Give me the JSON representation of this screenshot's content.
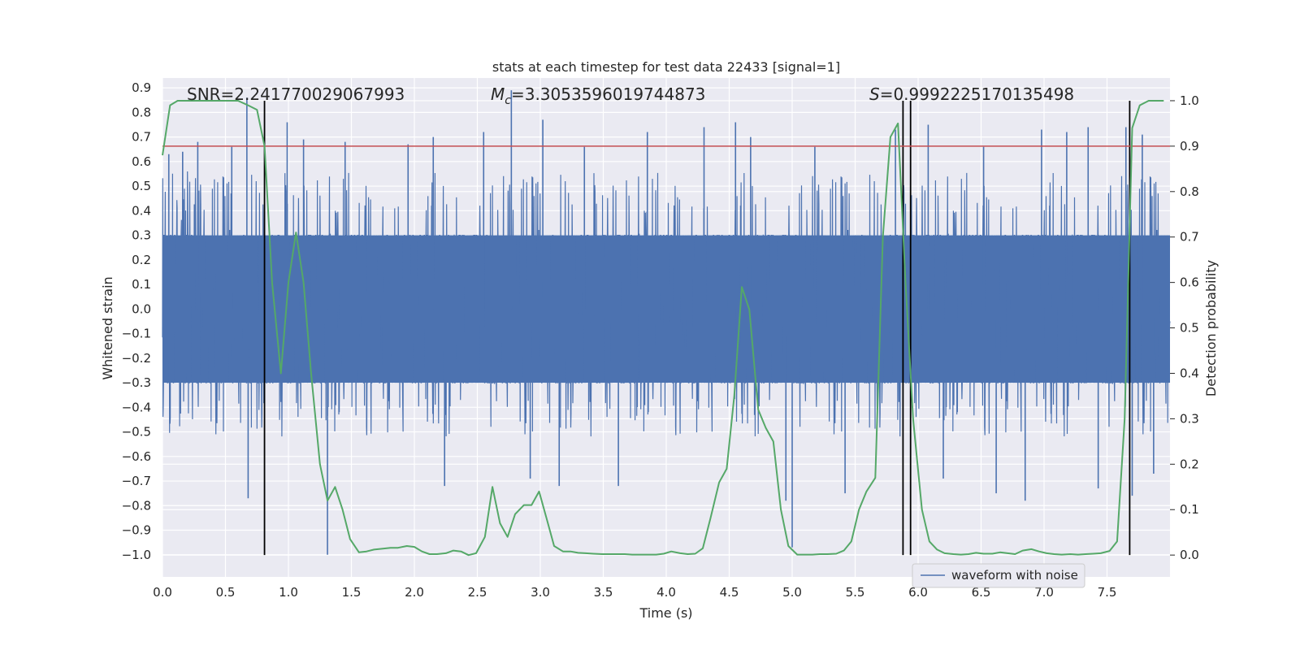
{
  "chart_data": {
    "type": "line",
    "title": "stats at each timestep for test data 22433 [signal=1]",
    "xlabel": "Time (s)",
    "ylabel_left": "Whitened strain",
    "ylabel_right": "Detection probability",
    "xlim": [
      0.0,
      8.0
    ],
    "ylim_left": [
      -1.09,
      0.94
    ],
    "ylim_right": [
      -0.048,
      1.05
    ],
    "xticks": [
      "0.0",
      "0.5",
      "1.0",
      "1.5",
      "2.0",
      "2.5",
      "3.0",
      "3.5",
      "4.0",
      "4.5",
      "5.0",
      "5.5",
      "6.0",
      "6.5",
      "7.0",
      "7.5"
    ],
    "yticks_left": [
      "0.9",
      "0.8",
      "0.7",
      "0.6",
      "0.5",
      "0.4",
      "0.3",
      "0.2",
      "0.1",
      "0.0",
      "−0.1",
      "−0.2",
      "−0.3",
      "−0.4",
      "−0.5",
      "−0.6",
      "−0.7",
      "−0.8",
      "−0.9",
      "−1.0"
    ],
    "yticks_right": [
      "1.0",
      "0.9",
      "0.8",
      "0.7",
      "0.6",
      "0.5",
      "0.4",
      "0.3",
      "0.2",
      "0.1",
      "0.0"
    ],
    "grid": true,
    "legend": {
      "position": "lower-right",
      "entries": [
        "waveform with noise"
      ]
    },
    "annotations": {
      "snr": "SNR=2.241770029067993",
      "mc_symbol": "M",
      "mc_sub": "c",
      "mc_value": "=3.3053596019744873",
      "s_symbol": "S",
      "s_value": "=0.9992225170135498"
    },
    "threshold": {
      "axis": "right",
      "value": 0.9
    },
    "vertical_markers_x": [
      0.81,
      5.88,
      5.94,
      7.68
    ],
    "series": [
      {
        "name": "waveform with noise",
        "axis": "left",
        "kind": "dense-noise",
        "core_range": [
          -0.3,
          0.3
        ],
        "typical_range": [
          -0.52,
          0.56
        ],
        "spikes": [
          {
            "x": 0.05,
            "y": 0.63
          },
          {
            "x": 0.16,
            "y": 0.64
          },
          {
            "x": 0.28,
            "y": 0.68
          },
          {
            "x": 0.55,
            "y": 0.66
          },
          {
            "x": 0.67,
            "y": 0.86
          },
          {
            "x": 0.68,
            "y": -0.77
          },
          {
            "x": 0.99,
            "y": 0.76
          },
          {
            "x": 1.12,
            "y": 0.69
          },
          {
            "x": 1.31,
            "y": -1.0
          },
          {
            "x": 1.45,
            "y": 0.68
          },
          {
            "x": 1.95,
            "y": 0.67
          },
          {
            "x": 2.15,
            "y": 0.7
          },
          {
            "x": 2.24,
            "y": -0.72
          },
          {
            "x": 2.55,
            "y": 0.72
          },
          {
            "x": 2.77,
            "y": 0.89
          },
          {
            "x": 2.92,
            "y": -0.69
          },
          {
            "x": 3.02,
            "y": 0.77
          },
          {
            "x": 3.15,
            "y": -0.72
          },
          {
            "x": 3.35,
            "y": 0.66
          },
          {
            "x": 3.62,
            "y": -0.72
          },
          {
            "x": 3.85,
            "y": 0.72
          },
          {
            "x": 4.3,
            "y": 0.74
          },
          {
            "x": 4.55,
            "y": 0.76
          },
          {
            "x": 4.67,
            "y": 0.7
          },
          {
            "x": 4.95,
            "y": -0.78
          },
          {
            "x": 5.0,
            "y": -0.97
          },
          {
            "x": 5.18,
            "y": 0.66
          },
          {
            "x": 5.42,
            "y": -0.75
          },
          {
            "x": 5.82,
            "y": 0.73
          },
          {
            "x": 6.08,
            "y": 0.75
          },
          {
            "x": 6.2,
            "y": -0.69
          },
          {
            "x": 6.52,
            "y": 0.66
          },
          {
            "x": 6.62,
            "y": -0.75
          },
          {
            "x": 6.85,
            "y": -0.78
          },
          {
            "x": 6.98,
            "y": 0.73
          },
          {
            "x": 7.18,
            "y": 0.72
          },
          {
            "x": 7.35,
            "y": 0.74
          },
          {
            "x": 7.43,
            "y": -0.73
          },
          {
            "x": 7.65,
            "y": 0.74
          },
          {
            "x": 7.7,
            "y": -0.76
          },
          {
            "x": 7.78,
            "y": 0.71
          },
          {
            "x": 7.87,
            "y": -0.67
          }
        ]
      },
      {
        "name": "",
        "axis": "right",
        "x": [
          0.0,
          0.06,
          0.12,
          0.2,
          0.3,
          0.4,
          0.5,
          0.6,
          0.68,
          0.75,
          0.81,
          0.87,
          0.94,
          1.0,
          1.06,
          1.12,
          1.18,
          1.25,
          1.31,
          1.37,
          1.43,
          1.49,
          1.56,
          1.62,
          1.68,
          1.75,
          1.81,
          1.87,
          1.94,
          2.0,
          2.06,
          2.12,
          2.18,
          2.25,
          2.31,
          2.37,
          2.43,
          2.49,
          2.56,
          2.62,
          2.68,
          2.74,
          2.8,
          2.87,
          2.93,
          2.99,
          3.05,
          3.11,
          3.18,
          3.24,
          3.3,
          3.36,
          3.42,
          3.49,
          3.55,
          3.61,
          3.67,
          3.73,
          3.8,
          3.86,
          3.92,
          3.98,
          4.04,
          4.11,
          4.17,
          4.23,
          4.29,
          4.35,
          4.42,
          4.48,
          4.54,
          4.6,
          4.66,
          4.73,
          4.79,
          4.85,
          4.91,
          4.97,
          5.04,
          5.1,
          5.16,
          5.22,
          5.28,
          5.35,
          5.41,
          5.47,
          5.53,
          5.59,
          5.66,
          5.72,
          5.78,
          5.84,
          5.9,
          5.96,
          6.03,
          6.09,
          6.15,
          6.21,
          6.28,
          6.34,
          6.4,
          6.46,
          6.52,
          6.59,
          6.65,
          6.71,
          6.77,
          6.83,
          6.9,
          6.96,
          7.02,
          7.08,
          7.14,
          7.21,
          7.27,
          7.33,
          7.39,
          7.45,
          7.52,
          7.58,
          7.64,
          7.7,
          7.76,
          7.83,
          7.89,
          7.95
        ],
        "y": [
          0.88,
          0.99,
          1.0,
          1.0,
          1.0,
          1.0,
          1.0,
          1.0,
          0.99,
          0.98,
          0.9,
          0.6,
          0.4,
          0.6,
          0.71,
          0.6,
          0.4,
          0.2,
          0.12,
          0.15,
          0.1,
          0.035,
          0.006,
          0.008,
          0.012,
          0.014,
          0.016,
          0.016,
          0.02,
          0.018,
          0.008,
          0.002,
          0.002,
          0.004,
          0.01,
          0.008,
          0.0,
          0.004,
          0.04,
          0.15,
          0.07,
          0.04,
          0.09,
          0.11,
          0.11,
          0.14,
          0.08,
          0.02,
          0.008,
          0.008,
          0.005,
          0.004,
          0.003,
          0.002,
          0.002,
          0.002,
          0.002,
          0.001,
          0.001,
          0.001,
          0.001,
          0.003,
          0.008,
          0.004,
          0.002,
          0.003,
          0.015,
          0.08,
          0.16,
          0.19,
          0.35,
          0.59,
          0.54,
          0.32,
          0.28,
          0.25,
          0.1,
          0.02,
          0.001,
          0.001,
          0.001,
          0.002,
          0.002,
          0.003,
          0.01,
          0.03,
          0.1,
          0.14,
          0.17,
          0.7,
          0.92,
          0.95,
          0.6,
          0.3,
          0.1,
          0.03,
          0.012,
          0.004,
          0.002,
          0.001,
          0.002,
          0.005,
          0.003,
          0.003,
          0.006,
          0.004,
          0.002,
          0.01,
          0.013,
          0.008,
          0.004,
          0.002,
          0.001,
          0.002,
          0.001,
          0.002,
          0.003,
          0.004,
          0.009,
          0.03,
          0.3,
          0.94,
          0.99,
          1.0,
          1.0,
          1.0
        ]
      }
    ]
  },
  "colors": {
    "background": "#eaeaf2",
    "grid": "#ffffff",
    "waveform": "#4c72b0",
    "probability": "#55a868",
    "threshold": "#c44e52",
    "marker": "#000000"
  }
}
